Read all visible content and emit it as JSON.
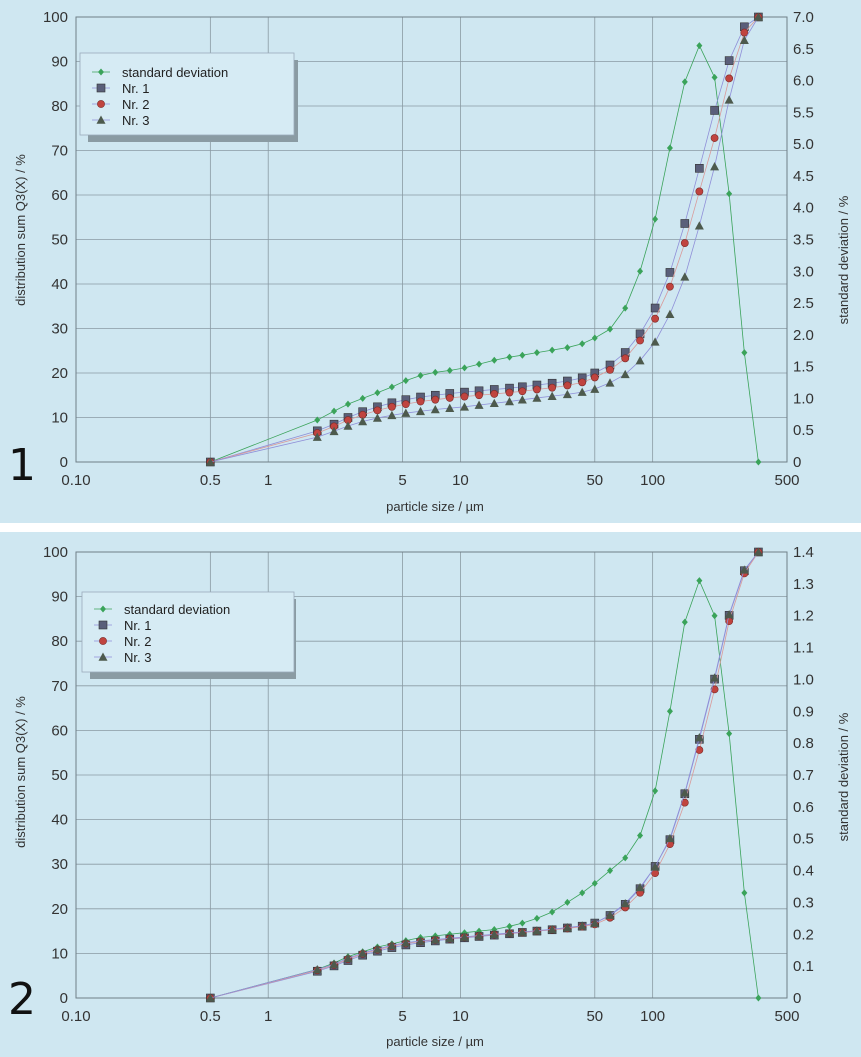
{
  "chart_data": [
    {
      "type": "scatter",
      "panel_label": "1",
      "xlabel": "particle size / µm",
      "ylabel": "distribution sum Q3(X) / %",
      "y2label": "standard deviation / %",
      "xscale": "log",
      "xlim": [
        0.1,
        500
      ],
      "ylim": [
        0,
        100
      ],
      "y2lim": [
        0,
        7
      ],
      "x_ticks": [
        "0.10",
        "0.5",
        "1",
        "5",
        "10",
        "50",
        "100",
        "500"
      ],
      "x_tick_values": [
        0.1,
        0.5,
        1,
        5,
        10,
        50,
        100,
        500
      ],
      "y_ticks": [
        "0",
        "10",
        "20",
        "30",
        "40",
        "50",
        "60",
        "70",
        "80",
        "90",
        "100"
      ],
      "y2_ticks": [
        "0",
        "0.5",
        "1.0",
        "1.5",
        "2.0",
        "2.5",
        "3.0",
        "3.5",
        "4.0",
        "4.5",
        "5.0",
        "5.5",
        "6.0",
        "6.5",
        "7.0"
      ],
      "grid": true,
      "legend_position": "top-left",
      "series": [
        {
          "name": "standard deviation",
          "axis": "right",
          "color": "#3aa35a",
          "marker": "diamond",
          "x": [
            0.5,
            1.8,
            2.2,
            2.6,
            3.1,
            3.7,
            4.4,
            5.2,
            6.2,
            7.4,
            8.8,
            10.5,
            12.5,
            15,
            18,
            21,
            25,
            30,
            36,
            43,
            50,
            60,
            72,
            86,
            103,
            123,
            147,
            175,
            210,
            250,
            300,
            355
          ],
          "y": [
            0,
            0.66,
            0.8,
            0.91,
            1.0,
            1.09,
            1.18,
            1.28,
            1.36,
            1.41,
            1.44,
            1.48,
            1.54,
            1.6,
            1.65,
            1.68,
            1.72,
            1.76,
            1.8,
            1.86,
            1.95,
            2.09,
            2.42,
            3.0,
            3.82,
            4.94,
            5.98,
            6.55,
            6.05,
            4.22,
            1.72,
            0
          ]
        },
        {
          "name": "Nr. 1",
          "axis": "left",
          "color": "#5a5f7a",
          "marker": "square",
          "x": [
            0.5,
            1.8,
            2.2,
            2.6,
            3.1,
            3.7,
            4.4,
            5.2,
            6.2,
            7.4,
            8.8,
            10.5,
            12.5,
            15,
            18,
            21,
            25,
            30,
            36,
            43,
            50,
            60,
            72,
            86,
            103,
            123,
            147,
            175,
            210,
            250,
            300,
            355
          ],
          "y": [
            0,
            7,
            8.5,
            10,
            11.3,
            12.4,
            13.3,
            14,
            14.6,
            15,
            15.4,
            15.7,
            16,
            16.3,
            16.6,
            16.9,
            17.3,
            17.7,
            18.2,
            18.9,
            20,
            21.8,
            24.6,
            28.8,
            34.6,
            42.6,
            53.6,
            66,
            79,
            90.2,
            97.8,
            100
          ]
        },
        {
          "name": "Nr. 2",
          "axis": "left",
          "color": "#c0443f",
          "marker": "circle",
          "x": [
            0.5,
            1.8,
            2.2,
            2.6,
            3.1,
            3.7,
            4.4,
            5.2,
            6.2,
            7.4,
            8.8,
            10.5,
            12.5,
            15,
            18,
            21,
            25,
            30,
            36,
            43,
            50,
            60,
            72,
            86,
            103,
            123,
            147,
            175,
            210,
            250,
            300,
            355
          ],
          "y": [
            0,
            6.5,
            8,
            9.4,
            10.6,
            11.6,
            12.4,
            13,
            13.6,
            14,
            14.4,
            14.7,
            15,
            15.3,
            15.6,
            15.9,
            16.3,
            16.7,
            17.2,
            17.9,
            19,
            20.7,
            23.3,
            27.3,
            32.2,
            39.4,
            49.2,
            60.8,
            72.8,
            86.2,
            96.5,
            100
          ]
        },
        {
          "name": "Nr. 3",
          "axis": "left",
          "color": "#4d5a4d",
          "marker": "triangle",
          "x": [
            0.5,
            1.8,
            2.2,
            2.6,
            3.1,
            3.7,
            4.4,
            5.2,
            6.2,
            7.4,
            8.8,
            10.5,
            12.5,
            15,
            18,
            21,
            25,
            30,
            36,
            43,
            50,
            60,
            72,
            86,
            103,
            123,
            147,
            175,
            210,
            250,
            300,
            355
          ],
          "y": [
            0,
            5.6,
            6.9,
            8.1,
            9.1,
            9.9,
            10.5,
            11,
            11.4,
            11.8,
            12.1,
            12.4,
            12.8,
            13.2,
            13.6,
            14,
            14.4,
            14.8,
            15.2,
            15.7,
            16.4,
            17.8,
            19.7,
            22.8,
            27,
            33.2,
            41.6,
            53.1,
            66.4,
            81.4,
            94.8,
            100
          ]
        }
      ]
    },
    {
      "type": "scatter",
      "panel_label": "2",
      "xlabel": "particle size / µm",
      "ylabel": "distribution sum Q3(X) / %",
      "y2label": "standard deviation / %",
      "xscale": "log",
      "xlim": [
        0.1,
        500
      ],
      "ylim": [
        0,
        100
      ],
      "y2lim": [
        0,
        1.4
      ],
      "x_ticks": [
        "0.10",
        "0.5",
        "1",
        "5",
        "10",
        "50",
        "100",
        "500"
      ],
      "x_tick_values": [
        0.1,
        0.5,
        1,
        5,
        10,
        50,
        100,
        500
      ],
      "y_ticks": [
        "0",
        "10",
        "20",
        "30",
        "40",
        "50",
        "60",
        "70",
        "80",
        "90",
        "100"
      ],
      "y2_ticks": [
        "0",
        "0.1",
        "0.2",
        "0.3",
        "0.4",
        "0.5",
        "0.6",
        "0.7",
        "0.8",
        "0.9",
        "1.0",
        "1.1",
        "1.2",
        "1.3",
        "1.4"
      ],
      "grid": true,
      "legend_position": "top-left",
      "series": [
        {
          "name": "standard deviation",
          "axis": "right",
          "color": "#3aa35a",
          "marker": "diamond",
          "x": [
            0.5,
            1.8,
            2.2,
            2.6,
            3.1,
            3.7,
            4.4,
            5.2,
            6.2,
            7.4,
            8.8,
            10.5,
            12.5,
            15,
            18,
            21,
            25,
            30,
            36,
            43,
            50,
            60,
            72,
            86,
            103,
            123,
            147,
            175,
            210,
            250,
            300,
            355
          ],
          "y": [
            0,
            0.09,
            0.11,
            0.13,
            0.145,
            0.16,
            0.17,
            0.18,
            0.19,
            0.195,
            0.2,
            0.205,
            0.21,
            0.215,
            0.225,
            0.235,
            0.25,
            0.27,
            0.3,
            0.33,
            0.36,
            0.4,
            0.44,
            0.51,
            0.65,
            0.9,
            1.18,
            1.31,
            1.2,
            0.83,
            0.33,
            0
          ]
        },
        {
          "name": "Nr. 1",
          "axis": "left",
          "color": "#5a5f7a",
          "marker": "square",
          "x": [
            0.5,
            1.8,
            2.2,
            2.6,
            3.1,
            3.7,
            4.4,
            5.2,
            6.2,
            7.4,
            8.8,
            10.5,
            12.5,
            15,
            18,
            21,
            25,
            30,
            36,
            43,
            50,
            60,
            72,
            86,
            103,
            123,
            147,
            175,
            210,
            250,
            300,
            355
          ],
          "y": [
            0,
            6,
            7.2,
            8.4,
            9.6,
            10.5,
            11.3,
            11.9,
            12.4,
            12.8,
            13.2,
            13.5,
            13.8,
            14.1,
            14.4,
            14.7,
            15,
            15.3,
            15.7,
            16.1,
            16.8,
            18.5,
            21,
            24.5,
            29.5,
            35.5,
            45.8,
            58,
            71.5,
            85.8,
            95.8,
            100
          ]
        },
        {
          "name": "Nr. 2",
          "axis": "left",
          "color": "#c0443f",
          "marker": "circle",
          "x": [
            0.5,
            1.8,
            2.2,
            2.6,
            3.1,
            3.7,
            4.4,
            5.2,
            6.2,
            7.4,
            8.8,
            10.5,
            12.5,
            15,
            18,
            21,
            25,
            30,
            36,
            43,
            50,
            60,
            72,
            86,
            103,
            123,
            147,
            175,
            210,
            250,
            300,
            355
          ],
          "y": [
            0,
            6.2,
            7.4,
            8.7,
            9.9,
            10.8,
            11.6,
            12.2,
            12.7,
            13,
            13.3,
            13.6,
            13.9,
            14.2,
            14.5,
            14.7,
            15,
            15.3,
            15.6,
            16,
            16.5,
            18,
            20.3,
            23.6,
            28,
            34.5,
            43.8,
            55.6,
            69.2,
            84.5,
            95.2,
            100
          ]
        },
        {
          "name": "Nr. 3",
          "axis": "left",
          "color": "#4d5a4d",
          "marker": "triangle",
          "x": [
            0.5,
            1.8,
            2.2,
            2.6,
            3.1,
            3.7,
            4.4,
            5.2,
            6.2,
            7.4,
            8.8,
            10.5,
            12.5,
            15,
            18,
            21,
            25,
            30,
            36,
            43,
            50,
            60,
            72,
            86,
            103,
            123,
            147,
            175,
            210,
            250,
            300,
            355
          ],
          "y": [
            0,
            6.4,
            7.6,
            8.9,
            10.1,
            11,
            11.8,
            12.4,
            12.8,
            13.1,
            13.4,
            13.7,
            14,
            14.3,
            14.6,
            14.8,
            15.1,
            15.4,
            15.8,
            16.2,
            16.8,
            18.6,
            21.2,
            24.8,
            29.4,
            35.8,
            46,
            58.4,
            71.8,
            86,
            96,
            100
          ]
        }
      ]
    }
  ]
}
